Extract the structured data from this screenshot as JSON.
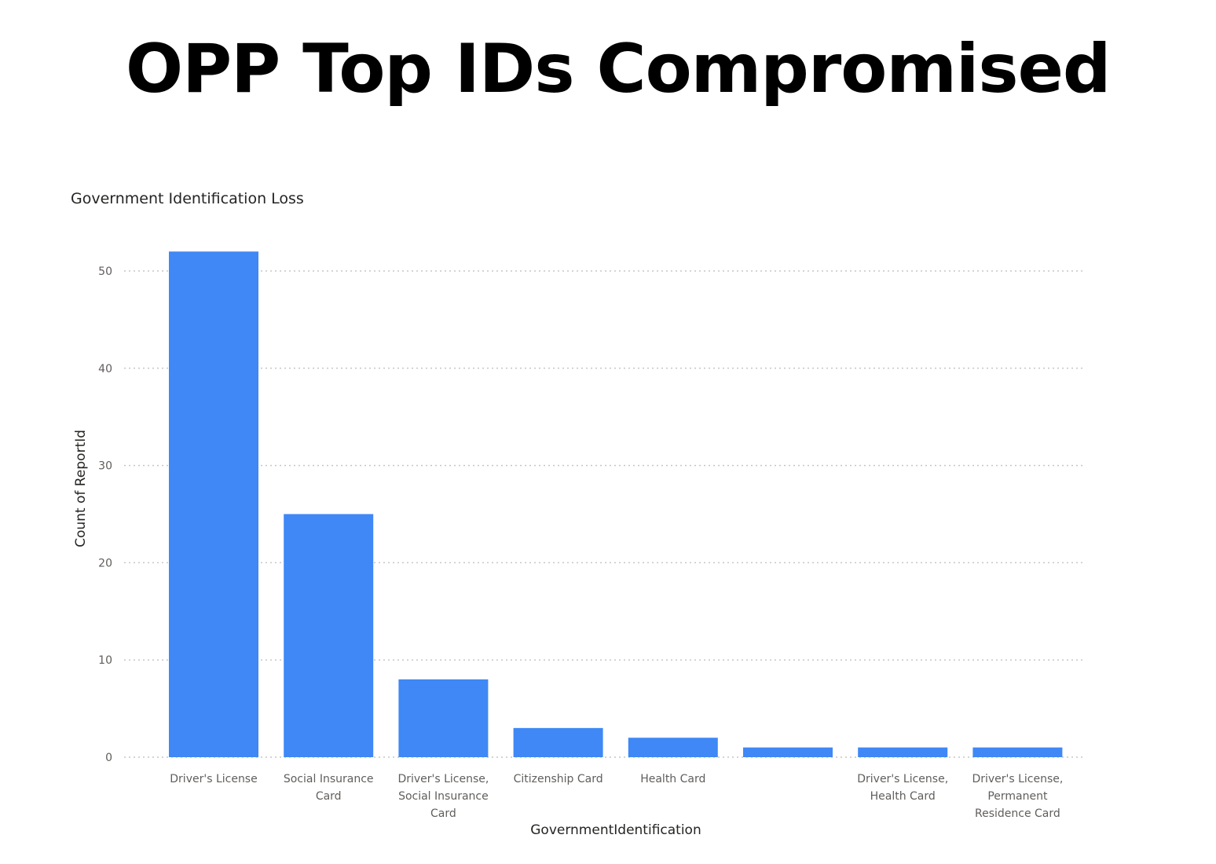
{
  "slide": {
    "title": "OPP Top IDs Compromised"
  },
  "colors": {
    "bar": "#3f88f5",
    "grid": "#c8c6c4",
    "text": "#605e5c"
  },
  "chart_data": {
    "type": "bar",
    "title": "Government Identification Loss",
    "xlabel": "GovernmentIdentification",
    "ylabel": "Count of ReportId",
    "ylim": [
      0,
      55
    ],
    "yticks": [
      0,
      10,
      20,
      30,
      40,
      50
    ],
    "grid": true,
    "categories": [
      [
        "Driver's License"
      ],
      [
        "Social Insurance",
        "Card"
      ],
      [
        "Driver's License,",
        "Social Insurance",
        "Card"
      ],
      [
        "Citizenship Card"
      ],
      [
        "Health Card"
      ],
      [],
      [
        "Driver's License,",
        "Health Card"
      ],
      [
        "Driver's License,",
        "Permanent",
        "Residence Card"
      ]
    ],
    "values": [
      52,
      25,
      8,
      3,
      2,
      1,
      1,
      1
    ]
  }
}
